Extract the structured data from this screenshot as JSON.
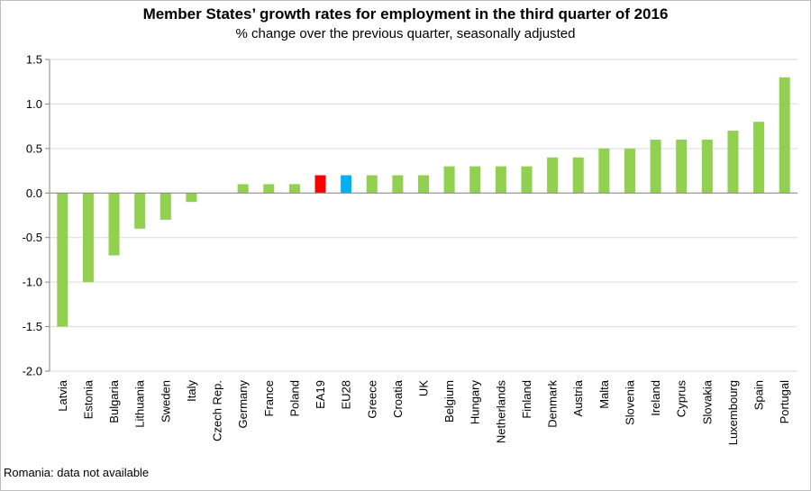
{
  "chart_data": {
    "type": "bar",
    "title": "Member States’ growth rates for employment in the third quarter of 2016",
    "subtitle": "% change over the previous quarter, seasonally adjusted",
    "xlabel": "",
    "ylabel": "",
    "ylim": [
      -2.0,
      1.5
    ],
    "yticks": [
      "1.5",
      "1.0",
      "0.5",
      "0.0",
      "-0.5",
      "-1.0",
      "-1.5",
      "-2.0"
    ],
    "ytick_values": [
      1.5,
      1.0,
      0.5,
      0.0,
      -0.5,
      -1.0,
      -1.5,
      -2.0
    ],
    "grid": true,
    "legend": "none",
    "categories": [
      "Latvia",
      "Estonia",
      "Bulgaria",
      "Lithuania",
      "Sweden",
      "Italy",
      "Czech Rep.",
      "Germany",
      "France",
      "Poland",
      "EA19",
      "EU28",
      "Greece",
      "Croatia",
      "UK",
      "Belgium",
      "Hungary",
      "Netherlands",
      "Finland",
      "Denmark",
      "Austria",
      "Malta",
      "Slovenia",
      "Ireland",
      "Cyprus",
      "Slovakia",
      "Luxembourg",
      "Spain",
      "Portugal"
    ],
    "values": [
      -1.5,
      -1.0,
      -0.7,
      -0.4,
      -0.3,
      -0.1,
      0.0,
      0.1,
      0.1,
      0.1,
      0.2,
      0.2,
      0.2,
      0.2,
      0.2,
      0.3,
      0.3,
      0.3,
      0.3,
      0.4,
      0.4,
      0.5,
      0.5,
      0.6,
      0.6,
      0.6,
      0.7,
      0.8,
      1.3
    ],
    "colors": {
      "default": "#92D050",
      "EA19": "#FF0000",
      "EU28": "#00B0F0",
      "grid": "#d9d9d9",
      "axis": "#868686"
    }
  },
  "footnote": "Romania: data not available"
}
